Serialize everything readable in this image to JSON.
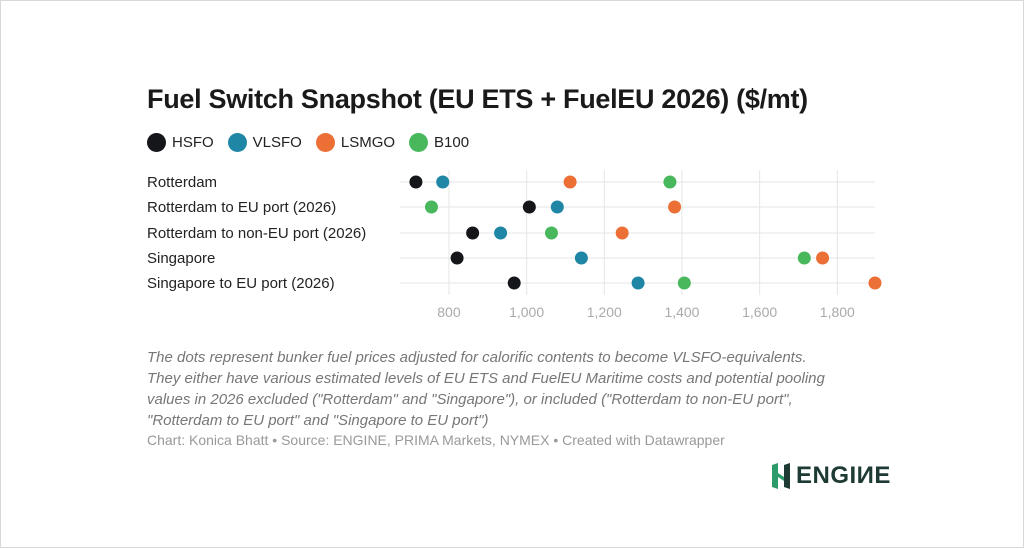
{
  "chart_data": {
    "type": "scatter",
    "title": "Fuel Switch Snapshot (EU ETS + FuelEU 2026) ($/mt)",
    "categories": [
      "Rotterdam",
      "Rotterdam to EU port (2026)",
      "Rotterdam to non-EU port (2026)",
      "Singapore",
      "Singapore to EU port (2026)"
    ],
    "series": [
      {
        "name": "HSFO",
        "color": "#15161a",
        "values": [
          715,
          1007,
          861,
          821,
          968
        ]
      },
      {
        "name": "VLSFO",
        "color": "#1f86a6",
        "values": [
          784,
          1079,
          933,
          1141,
          1287
        ]
      },
      {
        "name": "LSMGO",
        "color": "#ec7036",
        "values": [
          1112,
          1381,
          1246,
          1762,
          1897
        ]
      },
      {
        "name": "B100",
        "color": "#49b85d",
        "values": [
          1369,
          755,
          1064,
          1715,
          1406
        ]
      }
    ],
    "xticks": [
      800,
      1000,
      1200,
      1400,
      1600,
      1800
    ],
    "xtick_labels": [
      "800",
      "1,000",
      "1,200",
      "1,400",
      "1,600",
      "1,800"
    ],
    "xlim": [
      674,
      1897
    ],
    "grid": true,
    "legend_position": "top-left",
    "xlabel": "",
    "ylabel": ""
  },
  "description": [
    "The dots represent bunker fuel prices adjusted for calorific contents to become VLSFO-equivalents.",
    "They either have various estimated levels of EU ETS and FuelEU Maritime costs and potential pooling",
    "values in 2026 excluded (\"Rotterdam\" and \"Singapore\"), or included (\"Rotterdam to non-EU port\",",
    "\"Rotterdam to EU port\" and \"Singapore to EU port\")"
  ],
  "credit": "Chart: Konica Bhatt • Source: ENGINE, PRIMA Markets, NYMEX • Created with Datawrapper",
  "logo": {
    "text": "ENGIИE",
    "color": "#2d9a6a"
  }
}
